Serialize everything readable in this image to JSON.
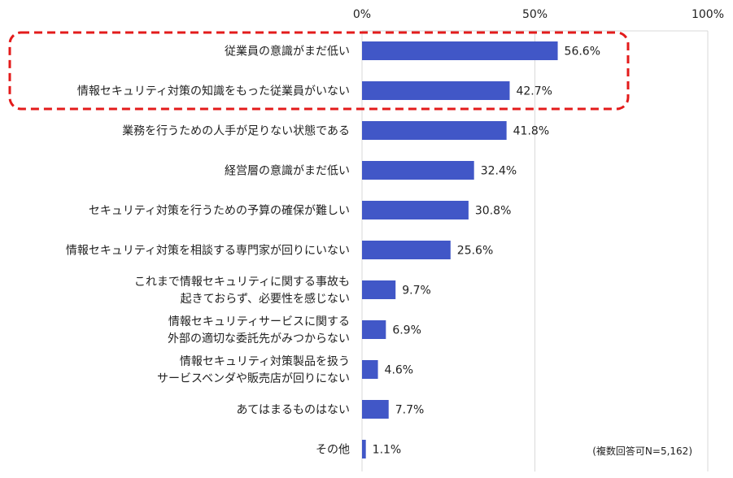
{
  "chart_data": {
    "type": "bar",
    "orientation": "horizontal",
    "categories": [
      [
        "従業員の意識がまだ低い"
      ],
      [
        "情報セキュリティ対策の知識をもった従業員がいない"
      ],
      [
        "業務を行うための人手が足りない状態である"
      ],
      [
        "経営層の意識がまだ低い"
      ],
      [
        "セキュリティ対策を行うための予算の確保が難しい"
      ],
      [
        "情報セキュリティ対策を相談する専門家が回りにいない"
      ],
      [
        "これまで情報セキュリティに関する事故も",
        "起きておらず、必要性を感じない"
      ],
      [
        "情報セキュリティサービスに関する",
        "外部の適切な委託先がみつからない"
      ],
      [
        "情報セキュリティ対策製品を扱う",
        "サービスベンダや販売店が回りにない"
      ],
      [
        "あてはまるものはない"
      ],
      [
        "その他"
      ]
    ],
    "values": [
      56.6,
      42.7,
      41.8,
      32.4,
      30.8,
      25.6,
      9.7,
      6.9,
      4.6,
      7.7,
      1.1
    ],
    "value_labels": [
      "56.6%",
      "42.7%",
      "41.8%",
      "32.4%",
      "30.8%",
      "25.6%",
      "9.7%",
      "6.9%",
      "4.6%",
      "7.7%",
      "1.1%"
    ],
    "xlim": [
      0,
      100
    ],
    "x_ticks": [
      "0%",
      "50%",
      "100%"
    ],
    "axis_position": "top",
    "grid": true,
    "highlight": {
      "categories_index": [
        0,
        1
      ],
      "style": "red-dashed-rounded-box"
    },
    "bar_color": "#4157c7",
    "highlight_color": "#e31b1b",
    "note": "(複数回答可N=5,162)"
  }
}
